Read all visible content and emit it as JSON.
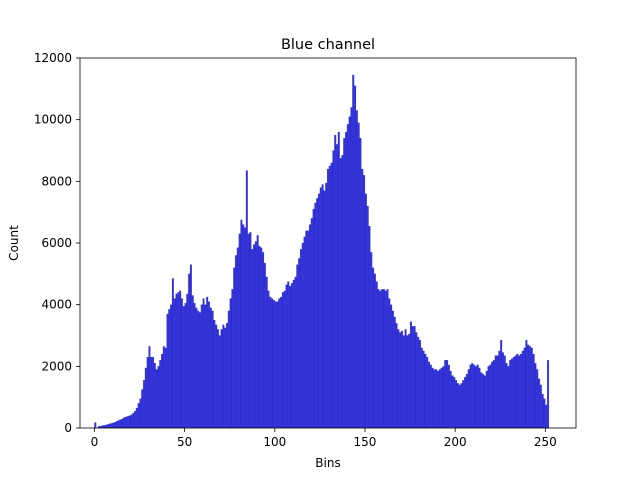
{
  "chart_data": {
    "type": "bar",
    "title": "Blue channel",
    "xlabel": "Bins",
    "ylabel": "Count",
    "xlim": [
      -8,
      267
    ],
    "ylim": [
      0,
      12000
    ],
    "xticks": [
      0,
      50,
      100,
      150,
      200,
      250
    ],
    "yticks": [
      0,
      2000,
      4000,
      6000,
      8000,
      10000,
      12000
    ],
    "grid": false,
    "bar_color": "#0000cc",
    "bar_alpha": 0.8,
    "bins_start": 0,
    "bin_width": 1,
    "values": [
      180,
      0,
      60,
      60,
      80,
      90,
      100,
      120,
      140,
      150,
      170,
      190,
      220,
      250,
      270,
      300,
      340,
      360,
      380,
      400,
      430,
      480,
      550,
      650,
      800,
      950,
      1250,
      1550,
      1950,
      2300,
      2650,
      2300,
      2300,
      2100,
      1900,
      2000,
      2200,
      2400,
      2650,
      2600,
      3700,
      3850,
      4000,
      4850,
      4200,
      4350,
      4400,
      4450,
      4200,
      3950,
      4050,
      4350,
      5000,
      5300,
      4300,
      4050,
      3900,
      3800,
      3750,
      4000,
      4200,
      4000,
      4250,
      4100,
      3900,
      3800,
      3500,
      3350,
      3200,
      3000,
      3200,
      3350,
      3250,
      3400,
      3800,
      4200,
      4500,
      5200,
      5600,
      5850,
      6300,
      6750,
      6600,
      6500,
      8350,
      6300,
      6350,
      5800,
      5950,
      6050,
      6250,
      5900,
      5850,
      5700,
      5350,
      4900,
      4450,
      4250,
      4200,
      4150,
      4100,
      4100,
      4200,
      4250,
      4400,
      4450,
      4650,
      4750,
      4600,
      4700,
      4800,
      4900,
      5300,
      5500,
      5800,
      6000,
      6200,
      6400,
      6400,
      6600,
      6800,
      7100,
      7300,
      7450,
      7600,
      7800,
      7900,
      7700,
      7950,
      8400,
      8500,
      8600,
      9000,
      9500,
      9200,
      9600,
      8750,
      8850,
      9400,
      9600,
      9850,
      10100,
      10400,
      11450,
      11100,
      10300,
      9900,
      9400,
      8400,
      8200,
      7600,
      7200,
      6550,
      5700,
      5200,
      5000,
      4750,
      4500,
      4450,
      4500,
      4500,
      4450,
      4500,
      4200,
      4000,
      3800,
      3600,
      3400,
      3200,
      3100,
      3150,
      3000,
      3200,
      3000,
      3050,
      3450,
      3300,
      3300,
      3100,
      2950,
      2850,
      2600,
      2500,
      2400,
      2300,
      2150,
      2050,
      1950,
      1900,
      1900,
      1850,
      1900,
      1950,
      2000,
      2200,
      2200,
      2050,
      1850,
      1700,
      1650,
      1550,
      1450,
      1400,
      1450,
      1550,
      1650,
      1750,
      1900,
      2050,
      2100,
      2050,
      2000,
      2050,
      1950,
      1800,
      1750,
      1700,
      1850,
      2000,
      2050,
      2150,
      2200,
      2350,
      2350,
      2500,
      2850,
      2450,
      2350,
      2100,
      2000,
      2200,
      2250,
      2300,
      2350,
      2400,
      2350,
      2400,
      2500,
      2600,
      2850,
      2700,
      2650,
      2600,
      2400,
      2100,
      1900,
      1600,
      1400,
      1100,
      950,
      750,
      2200
    ]
  }
}
